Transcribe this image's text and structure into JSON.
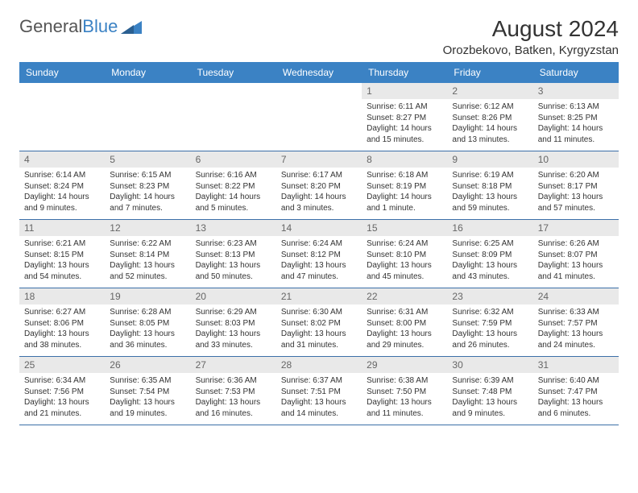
{
  "logo": {
    "textGeneral": "General",
    "textBlue": "Blue"
  },
  "title": "August 2024",
  "location": "Orozbekovo, Batken, Kyrgyzstan",
  "colors": {
    "headerBar": "#3b82c4",
    "dayNumBg": "#e9e9e9",
    "weekBorder": "#3b6fa8",
    "textDark": "#333333",
    "textMuted": "#666666"
  },
  "weekdays": [
    "Sunday",
    "Monday",
    "Tuesday",
    "Wednesday",
    "Thursday",
    "Friday",
    "Saturday"
  ],
  "weeks": [
    [
      null,
      null,
      null,
      null,
      {
        "num": "1",
        "sunrise": "6:11 AM",
        "sunset": "8:27 PM",
        "daylight": "14 hours and 15 minutes."
      },
      {
        "num": "2",
        "sunrise": "6:12 AM",
        "sunset": "8:26 PM",
        "daylight": "14 hours and 13 minutes."
      },
      {
        "num": "3",
        "sunrise": "6:13 AM",
        "sunset": "8:25 PM",
        "daylight": "14 hours and 11 minutes."
      }
    ],
    [
      {
        "num": "4",
        "sunrise": "6:14 AM",
        "sunset": "8:24 PM",
        "daylight": "14 hours and 9 minutes."
      },
      {
        "num": "5",
        "sunrise": "6:15 AM",
        "sunset": "8:23 PM",
        "daylight": "14 hours and 7 minutes."
      },
      {
        "num": "6",
        "sunrise": "6:16 AM",
        "sunset": "8:22 PM",
        "daylight": "14 hours and 5 minutes."
      },
      {
        "num": "7",
        "sunrise": "6:17 AM",
        "sunset": "8:20 PM",
        "daylight": "14 hours and 3 minutes."
      },
      {
        "num": "8",
        "sunrise": "6:18 AM",
        "sunset": "8:19 PM",
        "daylight": "14 hours and 1 minute."
      },
      {
        "num": "9",
        "sunrise": "6:19 AM",
        "sunset": "8:18 PM",
        "daylight": "13 hours and 59 minutes."
      },
      {
        "num": "10",
        "sunrise": "6:20 AM",
        "sunset": "8:17 PM",
        "daylight": "13 hours and 57 minutes."
      }
    ],
    [
      {
        "num": "11",
        "sunrise": "6:21 AM",
        "sunset": "8:15 PM",
        "daylight": "13 hours and 54 minutes."
      },
      {
        "num": "12",
        "sunrise": "6:22 AM",
        "sunset": "8:14 PM",
        "daylight": "13 hours and 52 minutes."
      },
      {
        "num": "13",
        "sunrise": "6:23 AM",
        "sunset": "8:13 PM",
        "daylight": "13 hours and 50 minutes."
      },
      {
        "num": "14",
        "sunrise": "6:24 AM",
        "sunset": "8:12 PM",
        "daylight": "13 hours and 47 minutes."
      },
      {
        "num": "15",
        "sunrise": "6:24 AM",
        "sunset": "8:10 PM",
        "daylight": "13 hours and 45 minutes."
      },
      {
        "num": "16",
        "sunrise": "6:25 AM",
        "sunset": "8:09 PM",
        "daylight": "13 hours and 43 minutes."
      },
      {
        "num": "17",
        "sunrise": "6:26 AM",
        "sunset": "8:07 PM",
        "daylight": "13 hours and 41 minutes."
      }
    ],
    [
      {
        "num": "18",
        "sunrise": "6:27 AM",
        "sunset": "8:06 PM",
        "daylight": "13 hours and 38 minutes."
      },
      {
        "num": "19",
        "sunrise": "6:28 AM",
        "sunset": "8:05 PM",
        "daylight": "13 hours and 36 minutes."
      },
      {
        "num": "20",
        "sunrise": "6:29 AM",
        "sunset": "8:03 PM",
        "daylight": "13 hours and 33 minutes."
      },
      {
        "num": "21",
        "sunrise": "6:30 AM",
        "sunset": "8:02 PM",
        "daylight": "13 hours and 31 minutes."
      },
      {
        "num": "22",
        "sunrise": "6:31 AM",
        "sunset": "8:00 PM",
        "daylight": "13 hours and 29 minutes."
      },
      {
        "num": "23",
        "sunrise": "6:32 AM",
        "sunset": "7:59 PM",
        "daylight": "13 hours and 26 minutes."
      },
      {
        "num": "24",
        "sunrise": "6:33 AM",
        "sunset": "7:57 PM",
        "daylight": "13 hours and 24 minutes."
      }
    ],
    [
      {
        "num": "25",
        "sunrise": "6:34 AM",
        "sunset": "7:56 PM",
        "daylight": "13 hours and 21 minutes."
      },
      {
        "num": "26",
        "sunrise": "6:35 AM",
        "sunset": "7:54 PM",
        "daylight": "13 hours and 19 minutes."
      },
      {
        "num": "27",
        "sunrise": "6:36 AM",
        "sunset": "7:53 PM",
        "daylight": "13 hours and 16 minutes."
      },
      {
        "num": "28",
        "sunrise": "6:37 AM",
        "sunset": "7:51 PM",
        "daylight": "13 hours and 14 minutes."
      },
      {
        "num": "29",
        "sunrise": "6:38 AM",
        "sunset": "7:50 PM",
        "daylight": "13 hours and 11 minutes."
      },
      {
        "num": "30",
        "sunrise": "6:39 AM",
        "sunset": "7:48 PM",
        "daylight": "13 hours and 9 minutes."
      },
      {
        "num": "31",
        "sunrise": "6:40 AM",
        "sunset": "7:47 PM",
        "daylight": "13 hours and 6 minutes."
      }
    ]
  ],
  "labels": {
    "sunrise": "Sunrise: ",
    "sunset": "Sunset: ",
    "daylight": "Daylight: "
  }
}
